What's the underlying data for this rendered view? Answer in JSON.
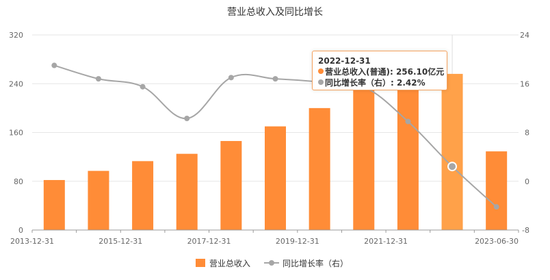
{
  "chart_data": {
    "type": "bar",
    "title": "营业总收入及同比增长",
    "categories": [
      "2013-12-31",
      "2014-12-31",
      "2015-12-31",
      "2016-12-31",
      "2017-12-31",
      "2018-12-31",
      "2019-12-31",
      "2020-12-31",
      "2021-12-31",
      "2022-12-31",
      "2023-06-30"
    ],
    "x_tick_labels": [
      "2013-12-31",
      "2015-12-31",
      "2017-12-31",
      "2019-12-31",
      "2021-12-31",
      "2023-06-30"
    ],
    "x_tick_indices": [
      0,
      2,
      4,
      6,
      8,
      10
    ],
    "series": [
      {
        "name": "营业总收入",
        "type": "bar",
        "axis": "left",
        "color": "#ff8c37",
        "values": [
          82,
          97,
          113,
          125,
          146,
          170,
          200,
          236,
          250,
          256.1,
          129
        ]
      },
      {
        "name": "同比增长率（右）",
        "type": "line",
        "axis": "right",
        "color": "#a6a6a6",
        "values": [
          19,
          16.8,
          15.5,
          10.3,
          17,
          16.8,
          16.3,
          15.5,
          9.8,
          2.42,
          -4.2
        ]
      }
    ],
    "y_left": {
      "min": 0,
      "max": 320,
      "ticks": [
        0,
        80,
        160,
        240,
        320
      ]
    },
    "y_right": {
      "min": -8,
      "max": 24,
      "ticks": [
        -8,
        0,
        8,
        16,
        24
      ]
    },
    "highlight_index": 9,
    "grid": true,
    "legend_position": "bottom"
  },
  "tooltip": {
    "date": "2022-12-31",
    "revenue_label": "营业总收入(普通): 256.10亿元",
    "growth_label": "同比增长率（右）: 2.42%"
  }
}
